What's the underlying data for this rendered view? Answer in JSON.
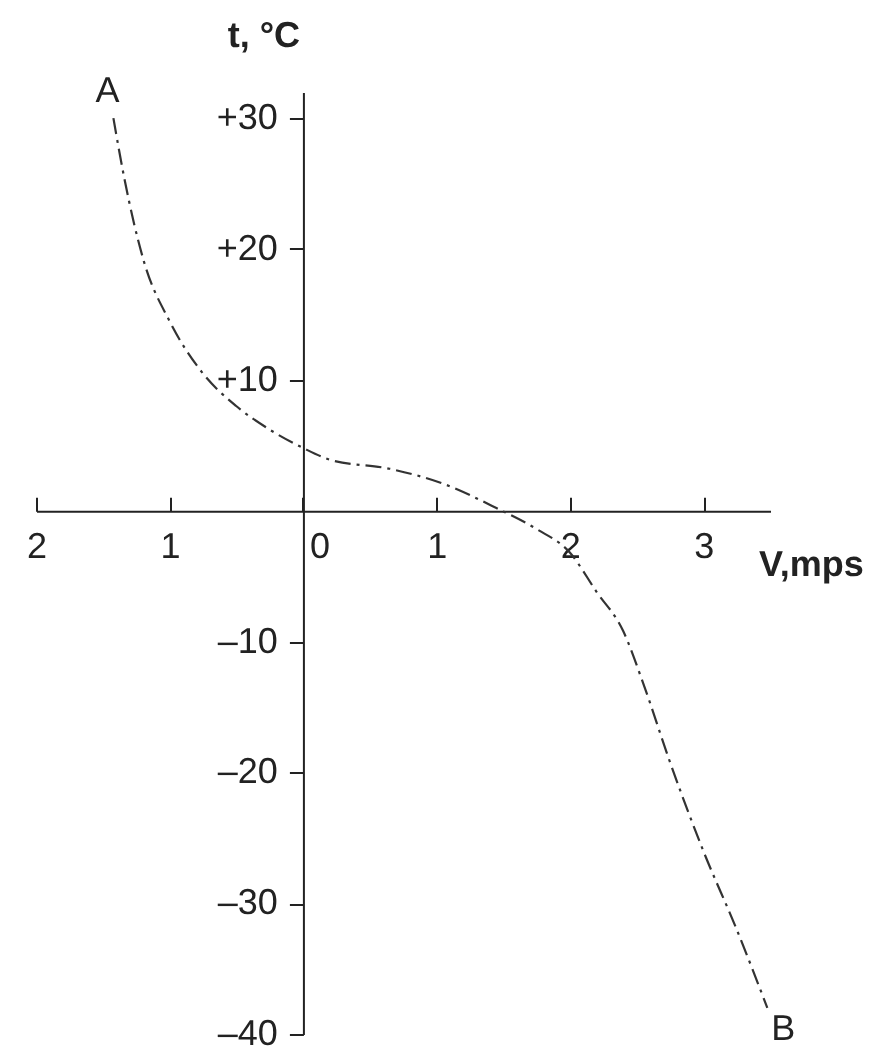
{
  "chart_data": {
    "type": "line",
    "xlabel": "V,mps",
    "ylabel": "t, °C",
    "xlim": [
      -2,
      3.5
    ],
    "ylim": [
      -40,
      32
    ],
    "xticks": [
      {
        "value": -2,
        "label": "2"
      },
      {
        "value": -1,
        "label": "1"
      },
      0,
      1,
      2,
      3
    ],
    "yticks": [
      {
        "value": 30,
        "label": "+30"
      },
      {
        "value": 20,
        "label": "+20"
      },
      {
        "value": 10,
        "label": "+10"
      },
      {
        "value": -10,
        "label": "–10"
      },
      {
        "value": -20,
        "label": "–20"
      },
      {
        "value": -30,
        "label": "–30"
      },
      {
        "value": -40,
        "label": "–40"
      }
    ],
    "series": [
      {
        "color": "#333333",
        "x": [
          -1.42,
          -1.34,
          -1.19,
          -1.0,
          -0.75,
          -0.5,
          -0.25,
          0,
          0.2,
          0.65,
          1.04,
          1.45,
          1.75,
          2.0,
          2.2,
          2.4,
          2.55,
          2.75,
          3.0,
          3.25,
          3.48
        ],
        "values": [
          30,
          25.5,
          19,
          14.5,
          10.5,
          8,
          6.2,
          4.8,
          3.9,
          3.2,
          2.1,
          0.2,
          -1.4,
          -3.2,
          -6.2,
          -9.2,
          -13.2,
          -19.2,
          -26,
          -32,
          -38
        ]
      }
    ],
    "line_style": "dashed",
    "grid": false,
    "annotations": [
      {
        "text": "A",
        "x": -1.42,
        "y": 30
      },
      {
        "text": "B",
        "x": 3.48,
        "y": -38
      }
    ]
  }
}
